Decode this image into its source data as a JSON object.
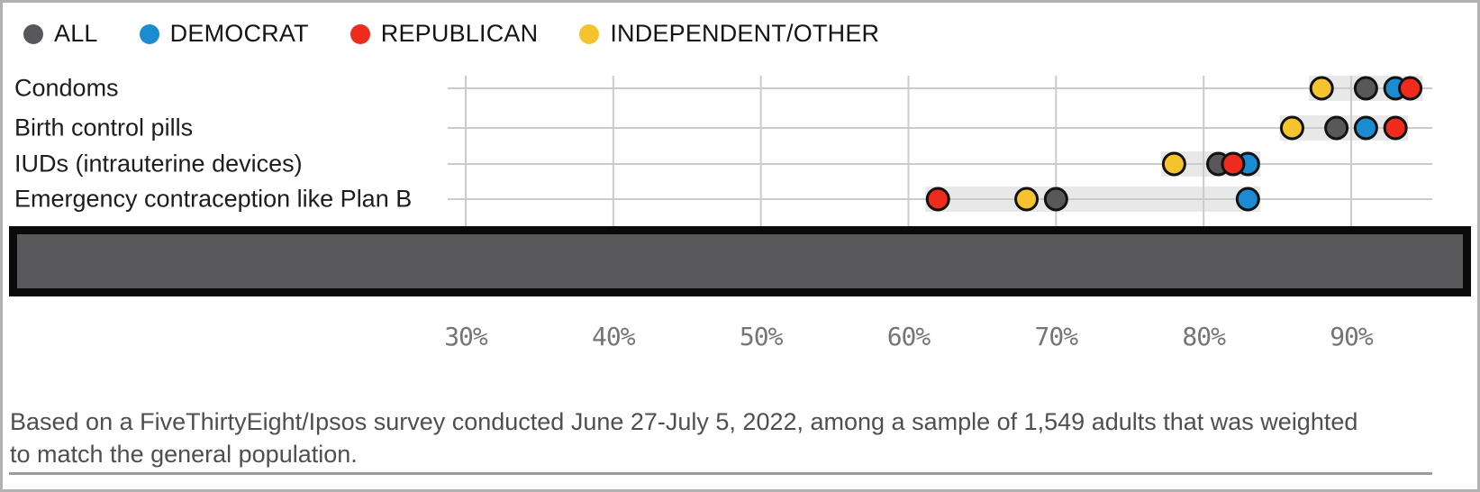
{
  "legend": [
    {
      "label": "ALL",
      "color": "#58585a"
    },
    {
      "label": "DEMOCRAT",
      "color": "#1b8bd2"
    },
    {
      "label": "REPUBLICAN",
      "color": "#ee2b1c"
    },
    {
      "label": "INDEPENDENT/OTHER",
      "color": "#f5c32d"
    }
  ],
  "chart_data": {
    "type": "scatter",
    "subtype": "dot-plot",
    "categories": [
      "Condoms",
      "Birth control pills",
      "IUDs (intrauterine devices)",
      "Emergency contraception like Plan B"
    ],
    "series": [
      {
        "id": "all",
        "name": "ALL",
        "color": "#58585a",
        "values": [
          91,
          89,
          81,
          70
        ]
      },
      {
        "id": "democrat",
        "name": "DEMOCRAT",
        "color": "#1b8bd2",
        "values": [
          93,
          91,
          83,
          83
        ]
      },
      {
        "id": "republican",
        "name": "REPUBLICAN",
        "color": "#ee2b1c",
        "values": [
          94,
          93,
          82,
          62
        ]
      },
      {
        "id": "independent",
        "name": "INDEPENDENT/OTHER",
        "color": "#f5c32d",
        "values": [
          88,
          86,
          78,
          68
        ]
      }
    ],
    "draw_order": [
      "independent",
      "all",
      "democrat",
      "republican"
    ],
    "x_ticks": [
      {
        "label": "30%",
        "value": 30
      },
      {
        "label": "40%",
        "value": 40
      },
      {
        "label": "50%",
        "value": 50
      },
      {
        "label": "60%",
        "value": 60
      },
      {
        "label": "70%",
        "value": 70
      },
      {
        "label": "80%",
        "value": 80
      },
      {
        "label": "90%",
        "value": 90
      }
    ],
    "unit": "%",
    "xlim": [
      27,
      96
    ],
    "grid": true,
    "legend_position": "top-left",
    "colors": {
      "gridline": "#cbcbcb",
      "range_band": "#e8e8e8",
      "dot_stroke": "#121212"
    }
  },
  "footer": {
    "line1": "Based on a FiveThirtyEight/Ipsos survey conducted June 27-July 5, 2022, among a sample of 1,549 adults that was weighted",
    "line2": "to match the general population."
  }
}
